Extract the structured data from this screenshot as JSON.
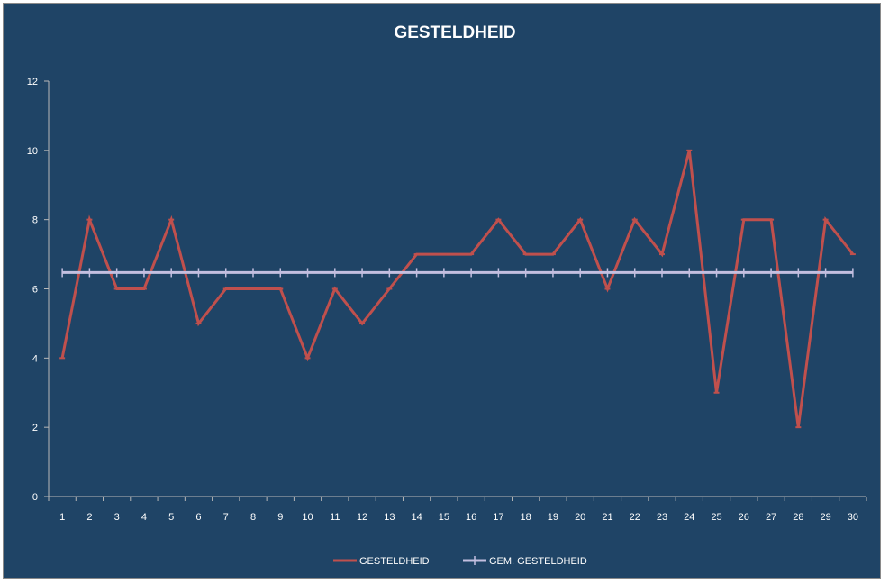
{
  "chart_data": {
    "type": "line",
    "title": "GESTELDHEID",
    "x": [
      1,
      2,
      3,
      4,
      5,
      6,
      7,
      8,
      9,
      10,
      11,
      12,
      13,
      14,
      15,
      16,
      17,
      18,
      19,
      20,
      21,
      22,
      23,
      24,
      25,
      26,
      27,
      28,
      29,
      30
    ],
    "x_labels": [
      "1",
      "2",
      "3",
      "4",
      "5",
      "6",
      "7",
      "8",
      "9",
      "10",
      "11",
      "12",
      "13",
      "14",
      "15",
      "16",
      "17",
      "18",
      "19",
      "20",
      "21",
      "22",
      "23",
      "24",
      "25",
      "26",
      "27",
      "28",
      "29",
      "30"
    ],
    "ylim": [
      0,
      12
    ],
    "y_ticks": [
      0,
      2,
      4,
      6,
      8,
      10,
      12
    ],
    "y_tick_labels": [
      "0",
      "2",
      "4",
      "6",
      "8",
      "10",
      "12"
    ],
    "grid": false,
    "legend_position": "bottom",
    "series": [
      {
        "name": "GESTELDHEID",
        "color": "#c0504d",
        "values": [
          4,
          8,
          6,
          6,
          8,
          5,
          6,
          6,
          6,
          4,
          6,
          5,
          6,
          7,
          7,
          7,
          8,
          7,
          7,
          8,
          6,
          8,
          7,
          10,
          3,
          8,
          8,
          2,
          8,
          7
        ]
      },
      {
        "name": "GEM. GESTELDHEID",
        "color": "#c3bfe0",
        "values": [
          6.47,
          6.47,
          6.47,
          6.47,
          6.47,
          6.47,
          6.47,
          6.47,
          6.47,
          6.47,
          6.47,
          6.47,
          6.47,
          6.47,
          6.47,
          6.47,
          6.47,
          6.47,
          6.47,
          6.47,
          6.47,
          6.47,
          6.47,
          6.47,
          6.47,
          6.47,
          6.47,
          6.47,
          6.47,
          6.47
        ]
      }
    ]
  },
  "colors": {
    "background": "#1f4466",
    "axis": "#b8b8b8",
    "text": "#ffffff"
  }
}
